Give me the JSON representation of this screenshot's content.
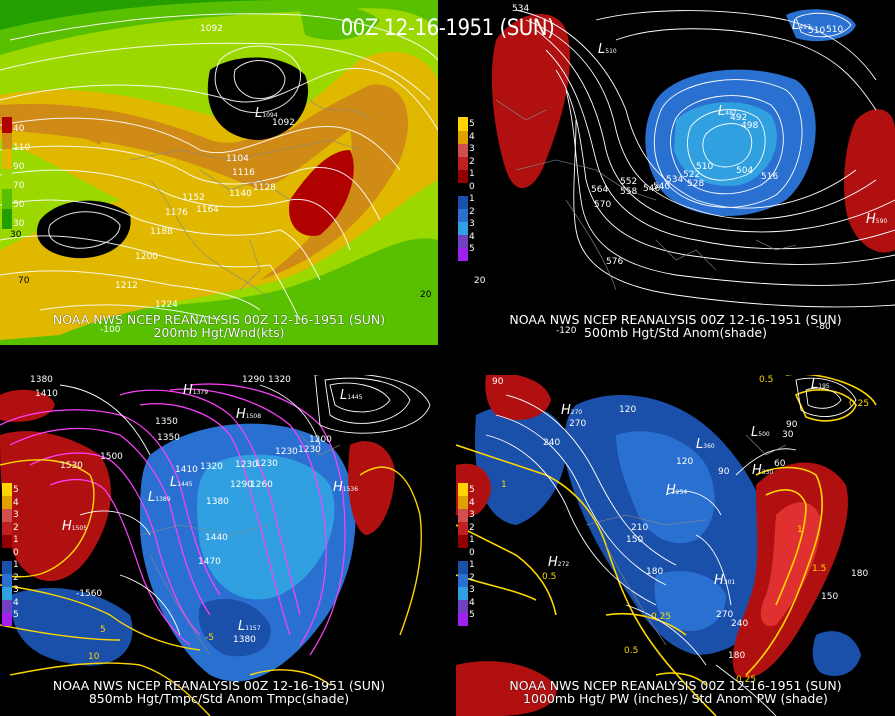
{
  "title": "00Z 12-16-1951 (SUN)",
  "panels": [
    {
      "caption1": "NOAA NWS NCEP REANALYSIS 00Z 12-16-1951 (SUN)",
      "caption2": "200mb Hgt/Wnd(kts)",
      "legend": [
        "40",
        "110",
        "90",
        "70",
        "50",
        "30"
      ],
      "legend_colors": [
        "#b00000",
        "#d08a16",
        "#e0b800",
        "#9ad800",
        "#58c000",
        "#23a000"
      ],
      "contour_labels": [
        "1092",
        "1092",
        "1104",
        "1116",
        "1128",
        "1152",
        "1140",
        "1164",
        "1176",
        "1188",
        "1200",
        "1212",
        "1224"
      ],
      "extra_labels": [
        "70",
        "30",
        "20",
        "-100"
      ],
      "hl": [
        {
          "t": "L",
          "v": "1094"
        }
      ]
    },
    {
      "caption1": "NOAA NWS NCEP REANALYSIS 00Z 12-16-1951 (SUN)",
      "caption2": "500mb Hgt/Std Anom(shade)",
      "legend": [
        "5",
        "4",
        "3",
        "2",
        "1",
        "0",
        "1",
        "2",
        "3",
        "4",
        "5"
      ],
      "legend_colors": [
        "#ffd400",
        "#e0a000",
        "#d05050",
        "#c02020",
        "#900000",
        "#000000",
        "#1a4faa",
        "#2a70d0",
        "#30a0e0",
        "#7040c0",
        "#a020f0"
      ],
      "contour_labels": [
        "534",
        "510",
        "510",
        "492",
        "498",
        "504",
        "510",
        "516",
        "522",
        "528",
        "534",
        "540",
        "546",
        "552",
        "558",
        "564",
        "570",
        "576",
        "20",
        "-120",
        "-80"
      ],
      "hl": [
        {
          "t": "L",
          "v": "510"
        },
        {
          "t": "L",
          "v": "487"
        },
        {
          "t": "L",
          "v": "497"
        },
        {
          "t": "H",
          "v": "590"
        }
      ]
    },
    {
      "caption1": "NOAA NWS NCEP REANALYSIS 00Z 12-16-1951 (SUN)",
      "caption2": "850mb Hgt/Tmpc/Std Anom Tmpc(shade)",
      "legend": [
        "5",
        "4",
        "3",
        "2",
        "1",
        "0",
        "1",
        "2",
        "3",
        "4",
        "5"
      ],
      "legend_colors": [
        "#ffd400",
        "#e0a000",
        "#d05050",
        "#c02020",
        "#900000",
        "#000000",
        "#1a4faa",
        "#2a70d0",
        "#30a0e0",
        "#7040c0",
        "#a020f0"
      ],
      "contour_labels": [
        "1380",
        "1410",
        "1530",
        "1500",
        "1350",
        "1410",
        "1320",
        "1290",
        "1260",
        "1230",
        "1200",
        "1290",
        "1320",
        "1350",
        "1380",
        "1440",
        "1470",
        "-1560",
        "5",
        "10",
        "-5",
        "1230",
        "1230",
        "1230",
        "1380"
      ],
      "hl": [
        {
          "t": "H",
          "v": "1505"
        },
        {
          "t": "L",
          "v": "1389"
        },
        {
          "t": "H",
          "v": "1379"
        },
        {
          "t": "H",
          "v": "1508"
        },
        {
          "t": "L",
          "v": "1445"
        },
        {
          "t": "L",
          "v": "1445"
        },
        {
          "t": "H",
          "v": "1536"
        },
        {
          "t": "L",
          "v": "1157"
        }
      ]
    },
    {
      "caption1": "NOAA NWS NCEP REANALYSIS 00Z 12-16-1951 (SUN)",
      "caption2": "1000mb Hgt/ PW (inches)/ Std Anom PW (shade)",
      "legend": [
        "5",
        "4",
        "3",
        "2",
        "1",
        "0",
        "1",
        "2",
        "3",
        "4",
        "5"
      ],
      "legend_colors": [
        "#ffd400",
        "#e0a000",
        "#d05050",
        "#c02020",
        "#900000",
        "#000000",
        "#1a4faa",
        "#2a70d0",
        "#30a0e0",
        "#7040c0",
        "#a020f0"
      ],
      "contour_labels": [
        "90",
        "120",
        "270",
        "240",
        "120",
        "90",
        "60",
        "30",
        "90",
        "210",
        "150",
        "180",
        "270",
        "240",
        "180",
        "150",
        "180",
        "0.5",
        "0.25",
        "0.5",
        "0.5",
        "0.25",
        "1.5",
        "1",
        "1",
        "0.25"
      ],
      "hl": [
        {
          "t": "H",
          "v": "270"
        },
        {
          "t": "L",
          "v": "360"
        },
        {
          "t": "H",
          "v": "254"
        },
        {
          "t": "H",
          "v": "330"
        },
        {
          "t": "H",
          "v": "301"
        },
        {
          "t": "L",
          "v": "500"
        },
        {
          "t": "H",
          "v": "272"
        },
        {
          "t": "L",
          "v": "195"
        }
      ]
    }
  ]
}
